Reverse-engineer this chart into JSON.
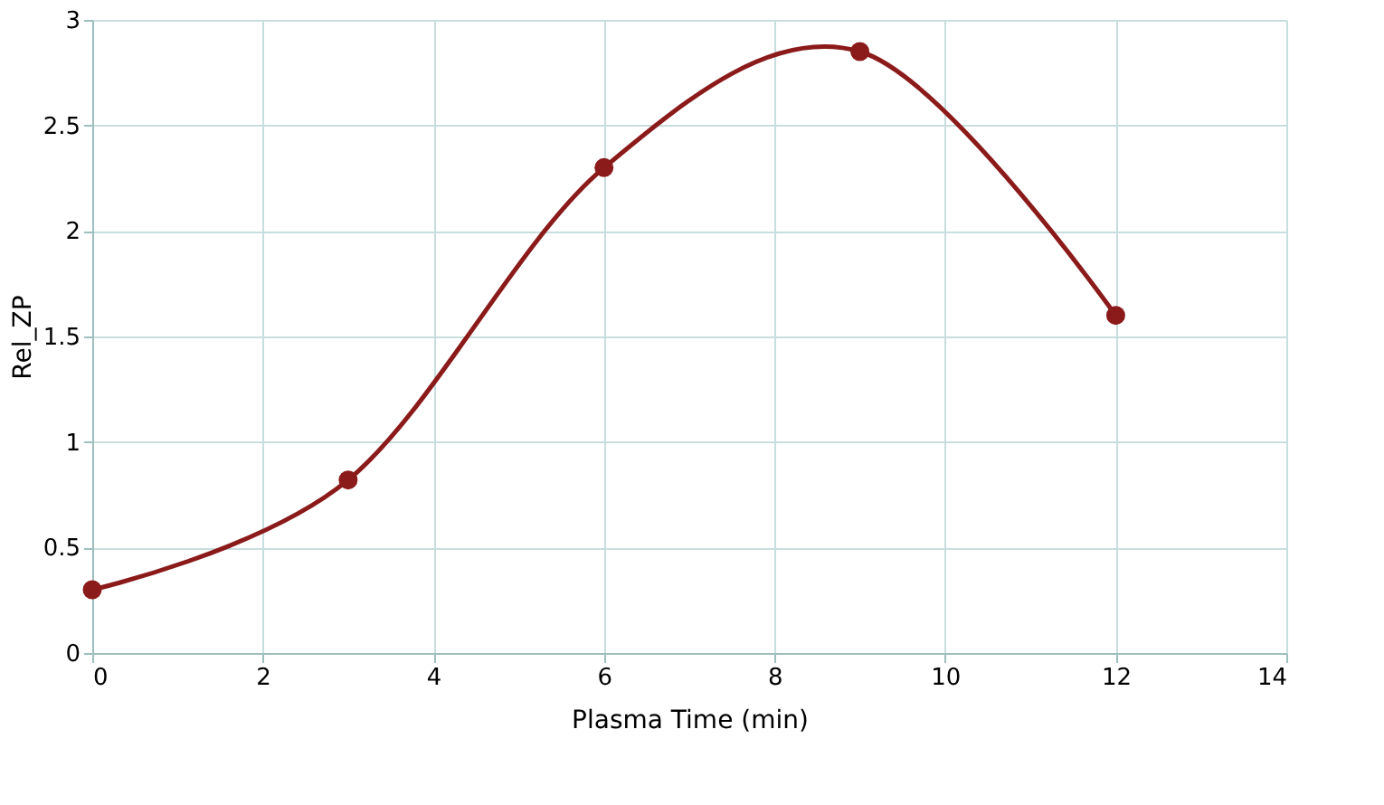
{
  "chart_data": {
    "type": "line",
    "xlabel": "Plasma Time (min)",
    "ylabel": "Rel_ZP",
    "x": [
      0,
      3,
      6,
      9,
      12
    ],
    "series": [
      {
        "color": "#8b1a1a",
        "values": [
          0.3,
          0.82,
          2.3,
          2.85,
          1.6
        ]
      }
    ],
    "xlim": [
      0,
      14
    ],
    "xticks": [
      0,
      2,
      4,
      6,
      8,
      10,
      12,
      14
    ],
    "ylim": [
      0,
      3
    ],
    "yticks": [
      0,
      0.5,
      1,
      1.5,
      2,
      2.5,
      3
    ],
    "grid": true,
    "marker": "circle",
    "line_style": "solid"
  }
}
